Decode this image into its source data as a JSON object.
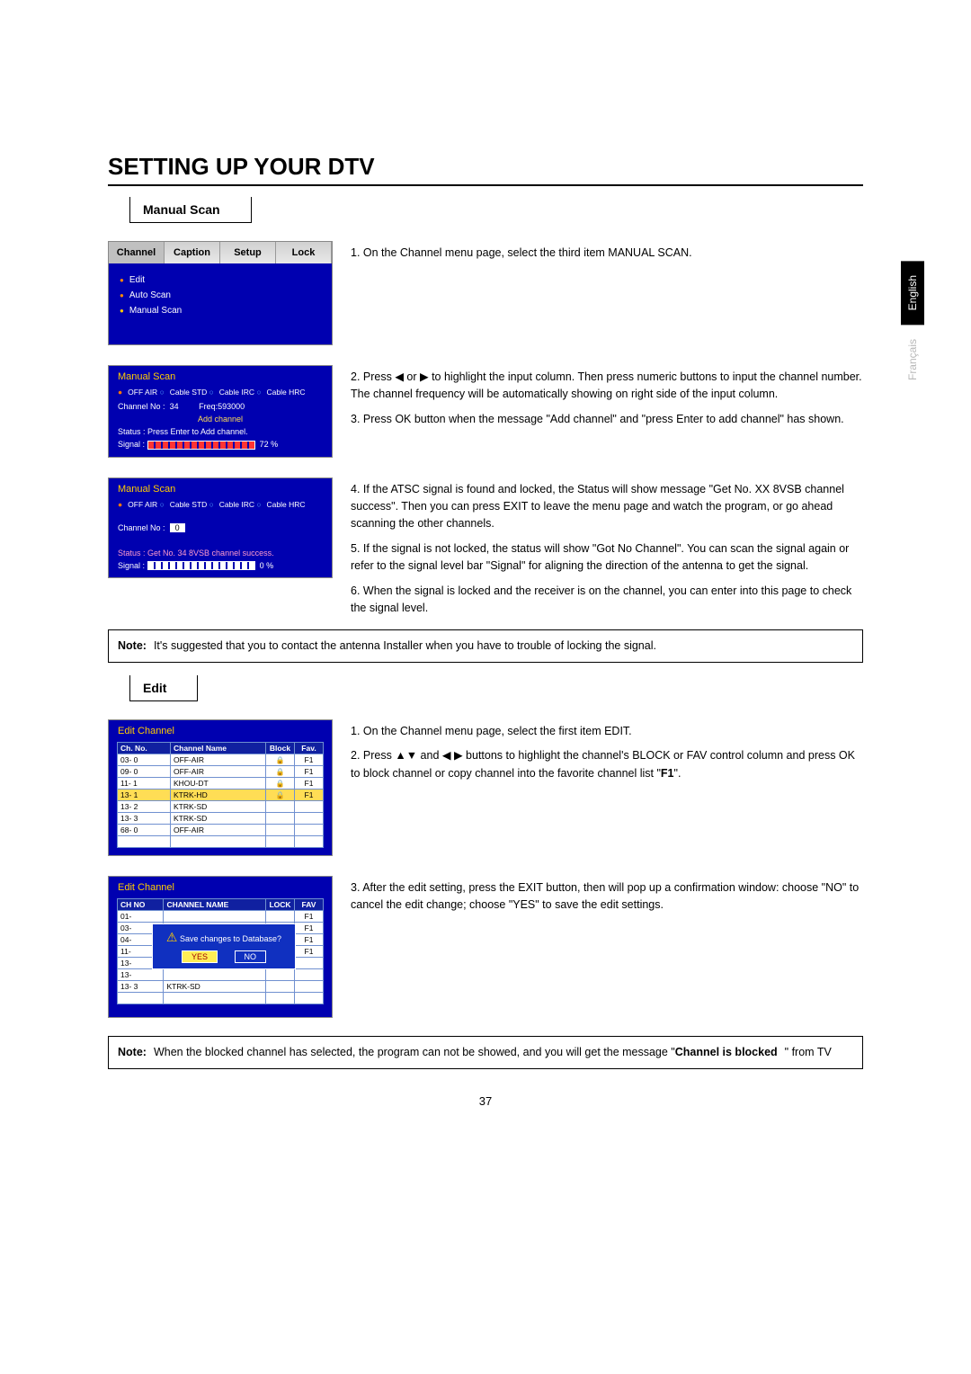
{
  "page": {
    "title": "SETTING UP YOUR DTV",
    "number": "37"
  },
  "lang": {
    "active": "English",
    "inactive": "Français"
  },
  "sections": {
    "manual_scan": {
      "label": "Manual Scan"
    },
    "edit": {
      "label": "Edit"
    }
  },
  "screenshot1": {
    "tabs": [
      "Channel",
      "Caption",
      "Setup",
      "Lock"
    ],
    "menu": [
      "Edit",
      "Auto Scan",
      "Manual Scan"
    ]
  },
  "screenshot2": {
    "title": "Manual Scan",
    "radios": "● OFF AIR  ○ Cable STD  ○ Cable IRC  ○ Cable HRC",
    "ch_label": "Channel No :",
    "ch_val": "34",
    "freq": "Freq:593000",
    "add": "Add channel",
    "status": "Status :  Press Enter to Add channel.",
    "signal_label": "Signal :",
    "signal_pct": "72 %"
  },
  "screenshot3": {
    "title": "Manual Scan",
    "radios": "● OFF AIR  ○ Cable STD  ○ Cable IRC  ○ Cable HRC",
    "ch_label": "Channel No :",
    "ch_val": "0",
    "status": "Status : Get No. 34  8VSB channel success.",
    "signal_label": "Signal :",
    "signal_pct": "0 %"
  },
  "screenshot4": {
    "title": "Edit Channel",
    "headers": [
      "Ch. No.",
      "Channel Name",
      "Block",
      "Fav."
    ],
    "rows": [
      [
        "03- 0",
        "OFF-AIR",
        "🔒",
        "F1"
      ],
      [
        "09- 0",
        "OFF-AIR",
        "🔒",
        "F1"
      ],
      [
        "11- 1",
        "KHOU-DT",
        "🔒",
        "F1"
      ],
      [
        "13- 1",
        "KTRK-HD",
        "🔒",
        "F1"
      ],
      [
        "13- 2",
        "KTRK-SD",
        "",
        ""
      ],
      [
        "13- 3",
        "KTRK-SD",
        "",
        ""
      ],
      [
        "68- 0",
        "OFF-AIR",
        "",
        ""
      ]
    ],
    "highlight_row": 3
  },
  "screenshot5": {
    "title": "Edit Channel",
    "headers": [
      "CH NO",
      "CHANNEL NAME",
      "LOCK",
      "FAV"
    ],
    "rows": [
      [
        "01-",
        "",
        "",
        "F1"
      ],
      [
        "03-",
        "",
        "",
        "F1"
      ],
      [
        "04-",
        "",
        "",
        "F1"
      ],
      [
        "11-",
        "",
        "",
        "F1"
      ],
      [
        "13-",
        "",
        "",
        ""
      ],
      [
        "13-",
        "",
        "",
        ""
      ],
      [
        "13- 3",
        "KTRK-SD",
        "",
        ""
      ]
    ],
    "popup_text": "Save changes to Database?",
    "popup_yes": "YES",
    "popup_no": "NO"
  },
  "instructions": {
    "ms1": "1. On the Channel menu page, select the third item MANUAL SCAN.",
    "ms2": "2. Press ◀ or ▶ to highlight the input column. Then press numeric buttons to input the channel number. The channel frequency will be automatically showing on right side of the input column.",
    "ms3": "3. Press OK button when the message \"Add channel\" and \"press Enter to add channel\" has shown.",
    "ms4": "4. If the ATSC signal is found and locked, the Status will show message \"Get No. XX 8VSB channel success\". Then you can press EXIT to leave the menu page and watch the program, or go ahead scanning the other channels.",
    "ms5": "5. If the signal is not locked, the status will show \"Got No Channel\". You can scan the signal again or refer to the signal level bar \"Signal\" for aligning the direction of the antenna to get the signal.",
    "ms6": "6. When the signal is locked and the receiver is on the channel, you can enter into this page to check the signal level.",
    "ed1": "1. On the Channel menu page, select the first item EDIT.",
    "ed2_a": "2. Press ▲▼ and ◀ ▶ buttons to highlight the channel's BLOCK or FAV control column and press OK to block channel or copy channel into the favorite channel list \"",
    "ed2_b": "F1",
    "ed2_c": "\".",
    "ed3": "3. After the edit setting, press the EXIT button, then will pop up a confirmation window: choose \"NO\" to cancel the edit change; choose \"YES\" to save the edit settings."
  },
  "notes": {
    "n1_label": "Note:",
    "n1_text": "It's suggested that you to contact the antenna Installer when you have to trouble of locking the signal.",
    "n2_label": "Note:",
    "n2_a": "When the blocked channel has selected, the program can not be showed, and you will get the message \"",
    "n2_b": "Channel is blocked",
    "n2_c": "\" from TV"
  }
}
